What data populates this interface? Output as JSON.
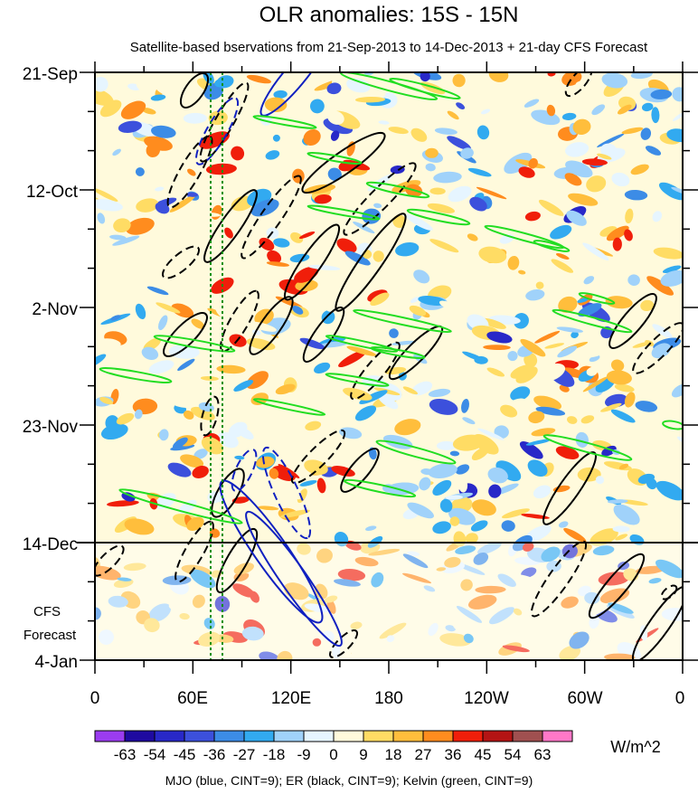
{
  "chart_data": {
    "type": "heatmap",
    "title": "OLR anomalies: 15S - 15N",
    "subtitle": "Satellite-based bservations from 21-Sep-2013 to 14-Dec-2013 + 21-day CFS Forecast",
    "x_ticks": [
      "0",
      "60E",
      "120E",
      "180",
      "120W",
      "60W",
      "0"
    ],
    "y_ticks": [
      "21-Sep",
      "12-Oct",
      "2-Nov",
      "23-Nov",
      "14-Dec",
      "4-Jan"
    ],
    "forecast_label_line1": "CFS",
    "forecast_label_line2": "Forecast",
    "forecast_start": "14-Dec",
    "colorbar": {
      "units": "W/m^2",
      "labels": [
        "-63",
        "-54",
        "-45",
        "-36",
        "-27",
        "-18",
        "-9",
        "0",
        "9",
        "18",
        "27",
        "36",
        "45",
        "54",
        "63"
      ],
      "colors": [
        "#9b3cf0",
        "#1e0aa0",
        "#2828c8",
        "#3c50dc",
        "#3c8ce6",
        "#32aaf0",
        "#a0d2fa",
        "#e6f5ff",
        "#fffadc",
        "#ffdc64",
        "#ffbe3c",
        "#ff8c1e",
        "#f01e0a",
        "#b41414",
        "#a05050",
        "#ff78c8"
      ]
    },
    "footnote": "MJO (blue, CINT=9); ER (black, CINT=9); Kelvin (green, CINT=9)"
  }
}
